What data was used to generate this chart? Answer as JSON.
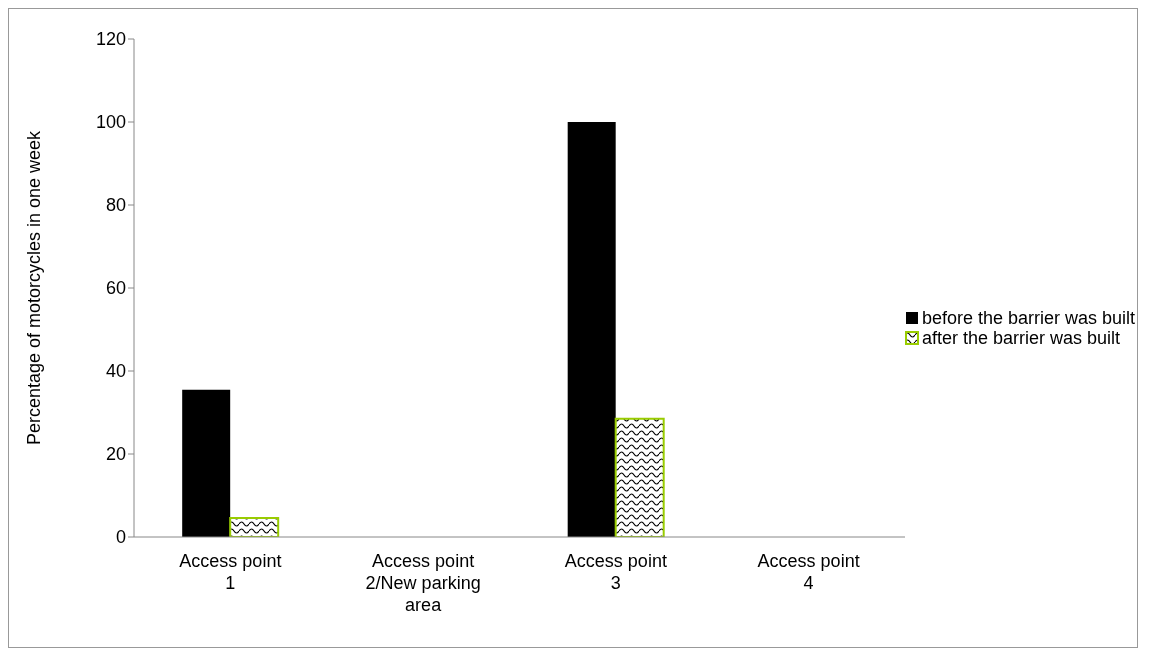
{
  "chart_data": {
    "type": "bar",
    "ylabel": "Percentage of motorcycles in one week",
    "categories": [
      "Access point 1",
      "Access point 2/New parking area",
      "Access point 3",
      "Access point 4"
    ],
    "series": [
      {
        "name": "before the barrier was built",
        "color": "#000000",
        "values": [
          35.5,
          0,
          100,
          0
        ]
      },
      {
        "name": "after the barrier was built",
        "color": "#99cc00",
        "values": [
          4.6,
          0,
          28.5,
          0
        ]
      }
    ],
    "ylim": [
      0,
      120
    ],
    "yticks": [
      0,
      20,
      40,
      60,
      80,
      100,
      120
    ],
    "grid": false,
    "legend": "right"
  }
}
